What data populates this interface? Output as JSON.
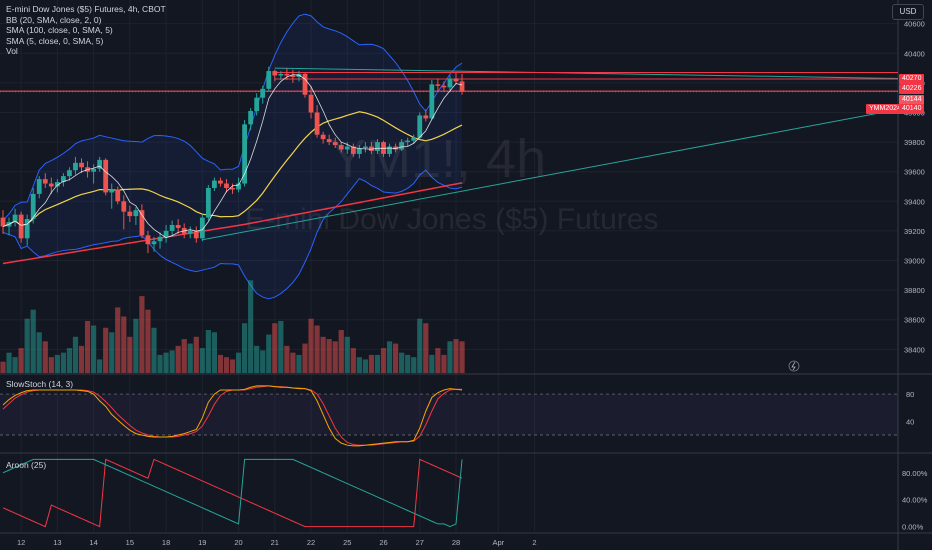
{
  "header": {
    "symbol_line": "E-mini Dow Jones ($5) Futures, 4h, CBOT",
    "bb_line": "BB (20, SMA, close, 2, 0)",
    "sma100_line": "SMA (100, close, 0, SMA, 5)",
    "sma5_line": "SMA (5, close, 0, SMA, 5)",
    "vol_line": "Vol"
  },
  "watermark": {
    "symbol": "YM1!, 4h",
    "name": "E-mini Dow Jones ($5) Futures"
  },
  "currency_button": "USD",
  "price_axis": {
    "ticks": [
      "40600",
      "40400",
      "40200",
      "40000",
      "39800",
      "39600",
      "39400",
      "39200",
      "39000",
      "38800",
      "38600",
      "38400"
    ],
    "tick_values": [
      40600,
      40400,
      40200,
      40000,
      39800,
      39600,
      39400,
      39200,
      39000,
      38800,
      38600,
      38400
    ],
    "range": [
      38240,
      40760
    ]
  },
  "price_tags": [
    {
      "label": "40270",
      "value": 40270,
      "color": "#f23645"
    },
    {
      "label": "40226",
      "value": 40226,
      "color": "#f23645"
    },
    {
      "label": "40144",
      "value": 40144,
      "color": "#f7525f"
    },
    {
      "label": "40140",
      "value": 40140,
      "color": "#f23645"
    }
  ],
  "symbol_tag": {
    "label": "YMM2024",
    "color": "#f23645"
  },
  "time_axis": {
    "labels": [
      "12",
      "13",
      "14",
      "15",
      "18",
      "19",
      "20",
      "21",
      "22",
      "25",
      "26",
      "27",
      "28",
      "Apr",
      "2"
    ],
    "label_bars": [
      3,
      9,
      15,
      21,
      27,
      33,
      39,
      45,
      51,
      57,
      63,
      69,
      75,
      82,
      88
    ]
  },
  "stoch_pane": {
    "label": "SlowStoch (14, 3)",
    "ticks": [
      "80",
      "40"
    ],
    "tick_values": [
      80,
      40
    ],
    "levels": [
      80,
      20
    ],
    "range": [
      -5,
      108
    ]
  },
  "aroon_pane": {
    "label": "Aroon (25)",
    "ticks": [
      "80.00%",
      "40.00%",
      "0.00%"
    ],
    "tick_values": [
      80,
      40,
      0
    ],
    "range": [
      -8,
      108
    ]
  },
  "colors": {
    "up": "#26a69a",
    "down": "#ef5350",
    "bb": "#2962ff",
    "sma5": "#ffffff",
    "sma20": "#f2d34c",
    "sma100": "#f23645",
    "trend": "#26a69a",
    "stoch_k": "#f7a600",
    "stoch_d": "#f23645",
    "aroon_up": "#26a69a",
    "aroon_down": "#f23645"
  },
  "chart_data": [
    {
      "type": "candlestick",
      "title": "E-mini Dow Jones ($5) Futures, 4h, CBOT",
      "ylim": [
        38240,
        40760
      ],
      "candles": [
        [
          39290,
          39340,
          39180,
          39230
        ],
        [
          39230,
          39290,
          39170,
          39260
        ],
        [
          39260,
          39350,
          39230,
          39310
        ],
        [
          39310,
          39330,
          39120,
          39150
        ],
        [
          39150,
          39310,
          39100,
          39280
        ],
        [
          39280,
          39490,
          39250,
          39450
        ],
        [
          39450,
          39570,
          39420,
          39550
        ],
        [
          39550,
          39590,
          39490,
          39520
        ],
        [
          39520,
          39560,
          39450,
          39500
        ],
        [
          39500,
          39550,
          39460,
          39530
        ],
        [
          39530,
          39590,
          39500,
          39570
        ],
        [
          39570,
          39630,
          39540,
          39610
        ],
        [
          39610,
          39700,
          39580,
          39660
        ],
        [
          39660,
          39690,
          39590,
          39630
        ],
        [
          39630,
          39670,
          39560,
          39600
        ],
        [
          39600,
          39650,
          39520,
          39620
        ],
        [
          39620,
          39700,
          39600,
          39680
        ],
        [
          39680,
          39690,
          39440,
          39460
        ],
        [
          39460,
          39520,
          39350,
          39480
        ],
        [
          39480,
          39500,
          39380,
          39400
        ],
        [
          39400,
          39440,
          39210,
          39330
        ],
        [
          39330,
          39370,
          39260,
          39300
        ],
        [
          39300,
          39360,
          39240,
          39340
        ],
        [
          39340,
          39380,
          39150,
          39170
        ],
        [
          39170,
          39200,
          39050,
          39110
        ],
        [
          39110,
          39160,
          39060,
          39130
        ],
        [
          39130,
          39190,
          39080,
          39160
        ],
        [
          39160,
          39240,
          39120,
          39200
        ],
        [
          39200,
          39270,
          39160,
          39240
        ],
        [
          39240,
          39280,
          39180,
          39220
        ],
        [
          39220,
          39250,
          39150,
          39180
        ],
        [
          39180,
          39230,
          39150,
          39200
        ],
        [
          39200,
          39230,
          39120,
          39150
        ],
        [
          39150,
          39310,
          39130,
          39290
        ],
        [
          39290,
          39510,
          39270,
          39490
        ],
        [
          39490,
          39560,
          39470,
          39540
        ],
        [
          39540,
          39560,
          39500,
          39520
        ],
        [
          39520,
          39550,
          39460,
          39490
        ],
        [
          39490,
          39520,
          39450,
          39480
        ],
        [
          39480,
          39560,
          39460,
          39520
        ],
        [
          39520,
          39950,
          39500,
          39920
        ],
        [
          39920,
          40030,
          39880,
          40010
        ],
        [
          40010,
          40130,
          39980,
          40100
        ],
        [
          40100,
          40180,
          40060,
          40160
        ],
        [
          40160,
          40310,
          40140,
          40280
        ],
        [
          40280,
          40290,
          40210,
          40250
        ],
        [
          40250,
          40280,
          40220,
          40260
        ],
        [
          40260,
          40300,
          40220,
          40250
        ],
        [
          40250,
          40290,
          40200,
          40240
        ],
        [
          40240,
          40280,
          40210,
          40260
        ],
        [
          40260,
          40270,
          40100,
          40120
        ],
        [
          40120,
          40180,
          39960,
          40000
        ],
        [
          40000,
          40050,
          39830,
          39850
        ],
        [
          39850,
          39870,
          39790,
          39820
        ],
        [
          39820,
          39850,
          39780,
          39800
        ],
        [
          39800,
          39830,
          39760,
          39780
        ],
        [
          39780,
          39800,
          39730,
          39750
        ],
        [
          39750,
          39800,
          39720,
          39770
        ],
        [
          39770,
          39790,
          39700,
          39720
        ],
        [
          39720,
          39780,
          39690,
          39760
        ],
        [
          39760,
          39800,
          39730,
          39770
        ],
        [
          39770,
          39800,
          39720,
          39740
        ],
        [
          39740,
          39820,
          39720,
          39800
        ],
        [
          39800,
          39810,
          39700,
          39720
        ],
        [
          39720,
          39790,
          39700,
          39770
        ],
        [
          39770,
          39790,
          39730,
          39750
        ],
        [
          39750,
          39820,
          39740,
          39800
        ],
        [
          39800,
          39830,
          39770,
          39810
        ],
        [
          39810,
          39850,
          39790,
          39830
        ],
        [
          39830,
          40000,
          39820,
          39980
        ],
        [
          39980,
          40020,
          39940,
          39960
        ],
        [
          39960,
          40220,
          39950,
          40190
        ],
        [
          40190,
          40230,
          40140,
          40180
        ],
        [
          40180,
          40210,
          40140,
          40170
        ],
        [
          40170,
          40250,
          40150,
          40230
        ],
        [
          40230,
          40270,
          40190,
          40210
        ],
        [
          40210,
          40260,
          40120,
          40140
        ]
      ],
      "volume": [
        25,
        45,
        35,
        55,
        120,
        140,
        90,
        70,
        35,
        40,
        45,
        55,
        80,
        60,
        115,
        105,
        30,
        100,
        90,
        145,
        125,
        80,
        120,
        170,
        140,
        100,
        40,
        45,
        50,
        60,
        75,
        65,
        80,
        55,
        95,
        90,
        40,
        35,
        30,
        45,
        110,
        205,
        60,
        50,
        85,
        110,
        115,
        60,
        45,
        40,
        65,
        120,
        105,
        80,
        75,
        70,
        95,
        80,
        55,
        35,
        30,
        40,
        40,
        55,
        70,
        65,
        45,
        40,
        35,
        120,
        110,
        40,
        55,
        40,
        70,
        75,
        70
      ]
    },
    {
      "type": "line",
      "title": "SlowStoch (14, 3)",
      "ylim": [
        0,
        100
      ],
      "series": [
        {
          "name": "%K",
          "values": [
            64,
            72,
            78,
            82,
            85,
            86,
            86,
            86,
            86,
            86,
            86,
            86,
            86,
            85,
            84,
            80,
            70,
            62,
            50,
            42,
            34,
            27,
            22,
            20,
            18,
            17,
            17,
            17,
            18,
            20,
            22,
            25,
            28,
            45,
            68,
            80,
            86,
            86,
            86,
            86,
            87,
            90,
            92,
            92,
            92,
            91,
            90,
            90,
            89,
            88,
            88,
            85,
            70,
            50,
            30,
            15,
            8,
            5,
            4,
            4,
            5,
            6,
            7,
            8,
            9,
            10,
            10,
            10,
            12,
            30,
            55,
            75,
            82,
            86,
            88,
            87,
            86
          ]
        },
        {
          "name": "%D",
          "values": [
            58,
            66,
            74,
            79,
            83,
            85,
            86,
            86,
            86,
            86,
            86,
            86,
            86,
            86,
            85,
            83,
            77,
            69,
            60,
            50,
            42,
            34,
            27,
            23,
            20,
            18,
            17,
            17,
            17,
            18,
            20,
            22,
            25,
            33,
            48,
            65,
            78,
            84,
            86,
            86,
            86,
            88,
            90,
            91,
            92,
            91,
            91,
            90,
            89,
            89,
            88,
            86,
            80,
            66,
            48,
            30,
            17,
            9,
            6,
            5,
            5,
            5,
            6,
            7,
            8,
            9,
            10,
            10,
            11,
            18,
            35,
            55,
            73,
            81,
            86,
            87,
            87
          ]
        }
      ]
    },
    {
      "type": "line",
      "title": "Aroon (25)",
      "ylim": [
        0,
        100
      ],
      "series": [
        {
          "name": "Aroon Up",
          "values": [
            80,
            84,
            88,
            92,
            96,
            100,
            100,
            100,
            100,
            100,
            100,
            100,
            100,
            100,
            100,
            100,
            96,
            92,
            88,
            84,
            80,
            76,
            72,
            68,
            64,
            60,
            56,
            52,
            48,
            44,
            40,
            36,
            32,
            28,
            24,
            20,
            16,
            12,
            8,
            4,
            100,
            100,
            100,
            100,
            100,
            100,
            100,
            100,
            100,
            96,
            92,
            88,
            84,
            80,
            76,
            72,
            68,
            64,
            60,
            56,
            52,
            48,
            44,
            40,
            36,
            32,
            28,
            24,
            20,
            16,
            12,
            8,
            4,
            4,
            0,
            4,
            100
          ]
        },
        {
          "name": "Aroon Down",
          "values": [
            28,
            24,
            20,
            16,
            12,
            8,
            4,
            0,
            32,
            28,
            24,
            20,
            16,
            12,
            8,
            4,
            0,
            100,
            96,
            92,
            88,
            84,
            80,
            76,
            72,
            100,
            96,
            92,
            88,
            84,
            80,
            76,
            72,
            68,
            64,
            60,
            56,
            52,
            48,
            44,
            40,
            36,
            32,
            28,
            24,
            20,
            16,
            12,
            8,
            4,
            0,
            0,
            0,
            0,
            0,
            0,
            0,
            0,
            0,
            0,
            0,
            0,
            0,
            0,
            0,
            0,
            0,
            0,
            0,
            100,
            96,
            92,
            88,
            84,
            80,
            76,
            72
          ]
        }
      ]
    }
  ]
}
